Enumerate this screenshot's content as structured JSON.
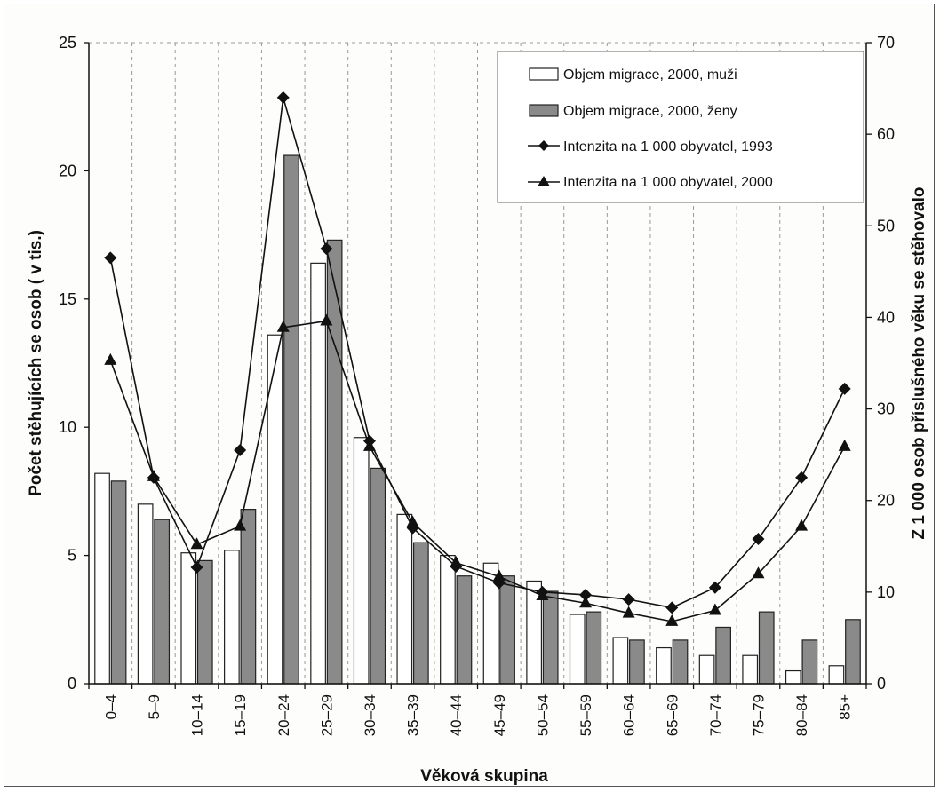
{
  "chart_data": {
    "type": "bar",
    "title": "",
    "xlabel": "Věková skupina",
    "ylabel_left": "Počet stěhujících se osob ( v tis.)",
    "ylabel_right": "Z 1 000 osob příslušného věku se stěhovalo",
    "ylim_left": [
      0,
      25
    ],
    "ylim_right": [
      0,
      70
    ],
    "yticks_left": [
      "0",
      "5",
      "10",
      "15",
      "20",
      "25"
    ],
    "yticks_right": [
      "0",
      "10",
      "20",
      "30",
      "40",
      "50",
      "60",
      "70"
    ],
    "grid": "vertical dashed",
    "legend_position": "top-right",
    "categories": [
      "0–4",
      "5–9",
      "10–14",
      "15–19",
      "20–24",
      "25–29",
      "30–34",
      "35–39",
      "40–44",
      "45–49",
      "50–54",
      "55–59",
      "60–64",
      "65–69",
      "70–74",
      "75–79",
      "80–84",
      "85+"
    ],
    "series": [
      {
        "name": "Objem migrace, 2000, muži",
        "kind": "bar",
        "axis": "left",
        "color": "#ffffff",
        "values": [
          8.2,
          7.0,
          5.1,
          5.2,
          13.6,
          16.4,
          9.6,
          6.6,
          5.0,
          4.7,
          4.0,
          2.7,
          1.8,
          1.4,
          1.1,
          1.1,
          0.5,
          0.7
        ]
      },
      {
        "name": "Objem migrace, 2000, ženy",
        "kind": "bar",
        "axis": "left",
        "color": "#8a8a8a",
        "values": [
          7.9,
          6.4,
          4.8,
          6.8,
          20.6,
          17.3,
          8.4,
          5.5,
          4.2,
          4.2,
          3.6,
          2.8,
          1.7,
          1.7,
          2.2,
          2.8,
          1.7,
          2.5
        ]
      },
      {
        "name": "Intenzita na 1 000 obyvatel, 1993",
        "kind": "line",
        "marker": "diamond",
        "axis": "right",
        "color": "#111111",
        "values": [
          46.5,
          22.5,
          12.7,
          25.5,
          64.0,
          47.5,
          26.5,
          17.0,
          12.8,
          11.0,
          10.0,
          9.7,
          9.2,
          8.3,
          10.5,
          15.8,
          22.5,
          32.2
        ]
      },
      {
        "name": "Intenzita na 1 000 obyvatel, 2000",
        "kind": "line",
        "marker": "triangle",
        "axis": "right",
        "color": "#111111",
        "values": [
          35.3,
          22.6,
          15.2,
          17.2,
          38.9,
          39.6,
          25.9,
          17.6,
          13.2,
          11.7,
          9.6,
          8.8,
          7.7,
          6.8,
          8.0,
          12.0,
          17.2,
          25.9
        ]
      }
    ]
  }
}
